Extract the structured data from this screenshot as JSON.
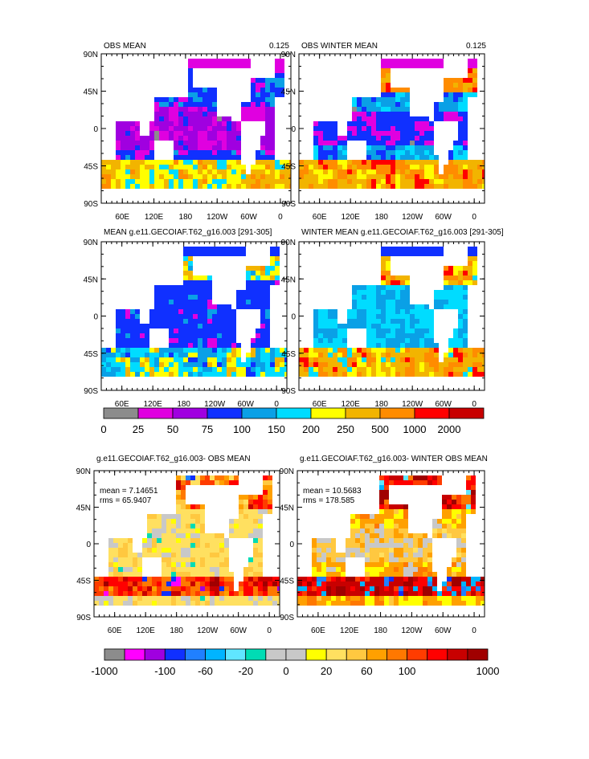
{
  "panels": [
    {
      "title": "OBS MEAN",
      "subtitle": "0.125",
      "stats": []
    },
    {
      "title": "OBS WINTER MEAN",
      "subtitle": "0.125",
      "stats": []
    },
    {
      "title": "MEAN g.e11.GECOIAF.T62_g16.003 [291-305]",
      "subtitle": "",
      "stats": []
    },
    {
      "title": "WINTER MEAN g.e11.GECOIAF.T62_g16.003 [291-305]",
      "subtitle": "",
      "stats": []
    },
    {
      "title": "g.e11.GECOIAF.T62_g16.003- OBS MEAN",
      "subtitle": "",
      "stats": [
        "mean = 7.14651",
        "rms = 65.9407"
      ]
    },
    {
      "title": "g.e11.GECOIAF.T62_g16.003- WINTER OBS MEAN",
      "subtitle": "",
      "stats": [
        "mean = 10.5683",
        "rms = 178.585"
      ]
    }
  ],
  "axes": {
    "lat_labels": [
      "90N",
      "45N",
      "0",
      "45S",
      "90S"
    ],
    "lon_labels": [
      "60E",
      "120E",
      "180",
      "120W",
      "60W",
      "0"
    ]
  },
  "colorbars": [
    {
      "name": "mean",
      "colors": [
        "#8c8c8c",
        "#e000e0",
        "#a000e0",
        "#1030ff",
        "#0aa0e6",
        "#00dcff",
        "#ffff00",
        "#f2b400",
        "#ff8c00",
        "#ff0000",
        "#c80000"
      ],
      "labels": [
        "0",
        "25",
        "50",
        "75",
        "100",
        "150",
        "200",
        "250",
        "500",
        "1000",
        "2000"
      ]
    },
    {
      "name": "difference",
      "colors": [
        "#8c8c8c",
        "#ff00ff",
        "#a000e0",
        "#1030ff",
        "#2080ff",
        "#00b4ff",
        "#60e6ff",
        "#00dcb4",
        "#c8c8c8",
        "#c8c8c8",
        "#ffff00",
        "#ffe060",
        "#ffc840",
        "#ffa000",
        "#ff7800",
        "#ff3c00",
        "#ff0000",
        "#c80000",
        "#a00000"
      ],
      "labels": [
        "-1000",
        "-100",
        "-60",
        "-20",
        "0",
        "20",
        "60",
        "100",
        "1000"
      ]
    }
  ],
  "chart_data": [
    {
      "type": "heatmap",
      "title": "OBS MEAN",
      "subtitle": "0.125",
      "x_ticks": [
        "60E",
        "120E",
        "180",
        "120W",
        "60W",
        "0"
      ],
      "y_ticks": [
        "90N",
        "45N",
        "0",
        "45S",
        "90S"
      ]
    },
    {
      "type": "heatmap",
      "title": "OBS WINTER MEAN",
      "subtitle": "0.125",
      "x_ticks": [
        "60E",
        "120E",
        "180",
        "120W",
        "60W",
        "0"
      ],
      "y_ticks": [
        "90N",
        "45N",
        "0",
        "45S",
        "90S"
      ]
    },
    {
      "type": "heatmap",
      "title": "MEAN g.e11.GECOIAF.T62_g16.003 [291-305]",
      "x_ticks": [
        "60E",
        "120E",
        "180",
        "120W",
        "60W",
        "0"
      ],
      "y_ticks": [
        "90N",
        "45N",
        "0",
        "45S",
        "90S"
      ]
    },
    {
      "type": "heatmap",
      "title": "WINTER MEAN g.e11.GECOIAF.T62_g16.003 [291-305]",
      "x_ticks": [
        "60E",
        "120E",
        "180",
        "120W",
        "60W",
        "0"
      ],
      "y_ticks": [
        "90N",
        "45N",
        "0",
        "45S",
        "90S"
      ]
    },
    {
      "type": "heatmap",
      "title": "g.e11.GECOIAF.T62_g16.003- OBS MEAN",
      "annotations": [
        "mean = 7.14651",
        "rms = 65.9407"
      ],
      "x_ticks": [
        "60E",
        "120E",
        "180",
        "120W",
        "60W",
        "0"
      ],
      "y_ticks": [
        "90N",
        "45N",
        "0",
        "45S",
        "90S"
      ]
    },
    {
      "type": "heatmap",
      "title": "g.e11.GECOIAF.T62_g16.003- WINTER OBS MEAN",
      "annotations": [
        "mean = 10.5683",
        "rms = 178.585"
      ],
      "x_ticks": [
        "60E",
        "120E",
        "180",
        "120W",
        "60W",
        "0"
      ],
      "y_ticks": [
        "90N",
        "45N",
        "0",
        "45S",
        "90S"
      ]
    }
  ]
}
